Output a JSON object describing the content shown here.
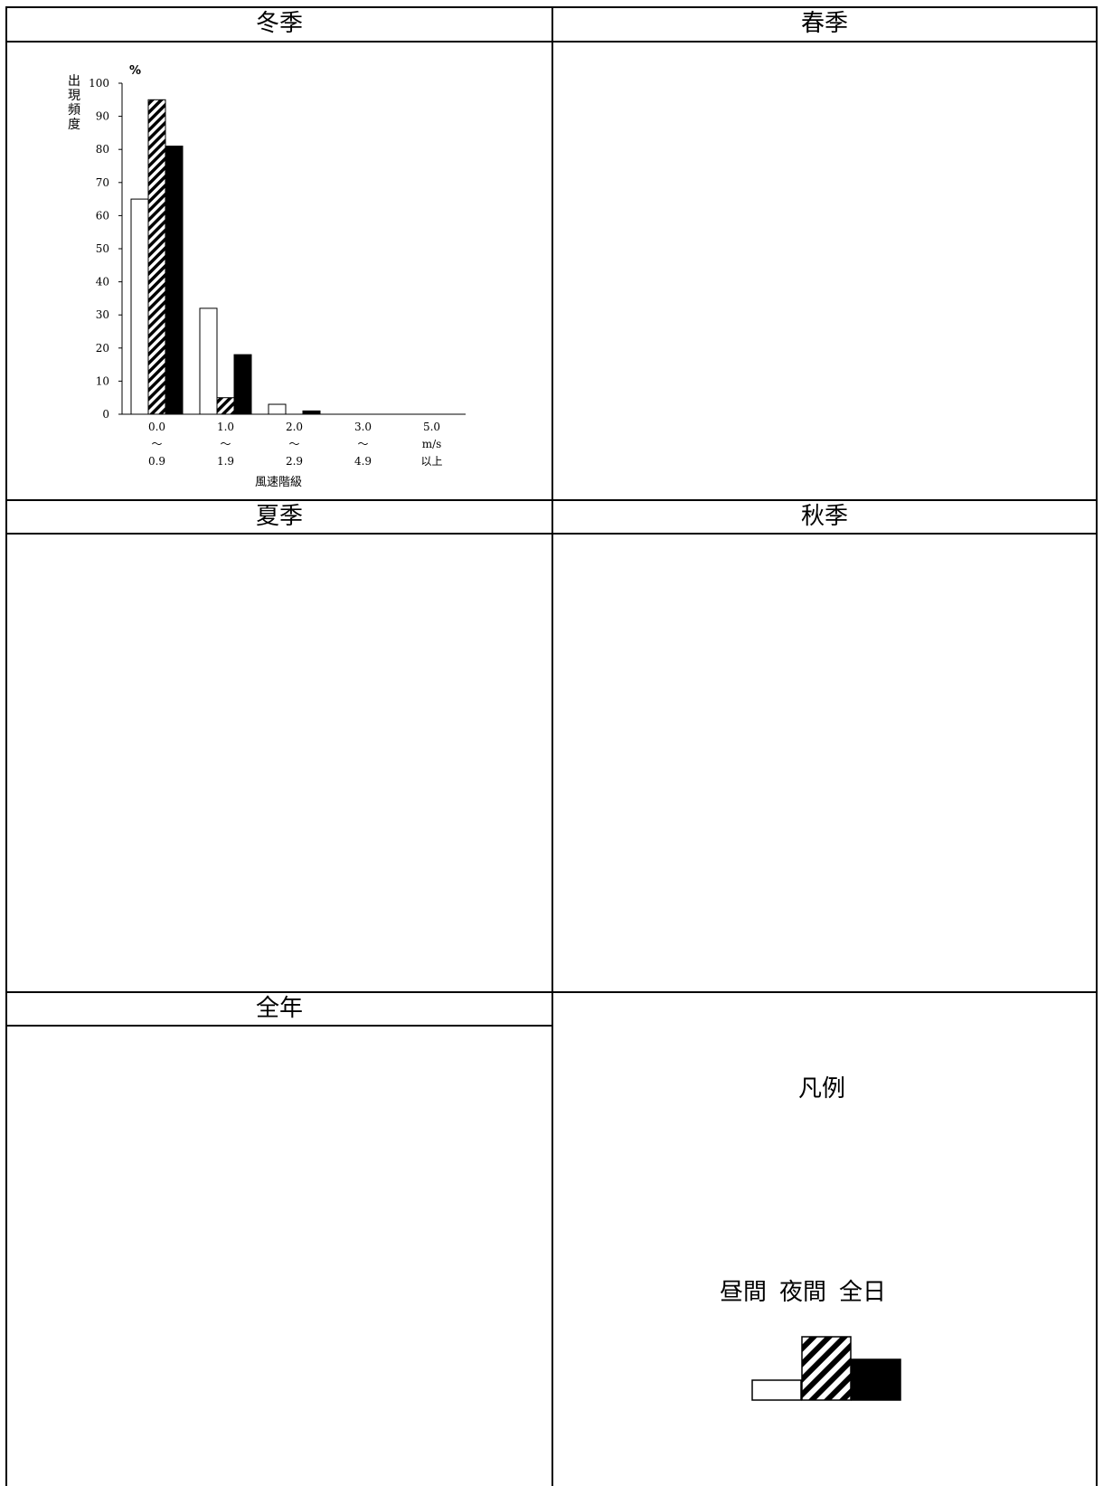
{
  "panels": {
    "winter": "冬季",
    "spring": "春季",
    "summer": "夏季",
    "autumn": "秋季",
    "year": "全年"
  },
  "legend": {
    "title": "凡例",
    "items": [
      "昼間",
      "夜間",
      "全日"
    ]
  },
  "colors": {
    "day": "#ffffff",
    "night_hatch": "#000000",
    "all_day": "#000000"
  },
  "chart_data": {
    "type": "bar",
    "panel": "冬季",
    "unit_label": "%",
    "ylabel": "出現頻度",
    "xlabel": "風速階級",
    "ylim": [
      0,
      100
    ],
    "yticks": [
      0,
      10,
      20,
      30,
      40,
      50,
      60,
      70,
      80,
      90,
      100
    ],
    "categories": [
      [
        "0.0",
        "～",
        "0.9"
      ],
      [
        "1.0",
        "～",
        "1.9"
      ],
      [
        "2.0",
        "～",
        "2.9"
      ],
      [
        "3.0",
        "～",
        "4.9"
      ],
      [
        "5.0",
        "m/s",
        "以上"
      ]
    ],
    "series": [
      {
        "name": "昼間",
        "values": [
          65,
          32,
          3,
          0,
          0
        ]
      },
      {
        "name": "夜間",
        "values": [
          95,
          5,
          0,
          0,
          0
        ]
      },
      {
        "name": "全日",
        "values": [
          81,
          18,
          1,
          0,
          0
        ]
      }
    ]
  }
}
